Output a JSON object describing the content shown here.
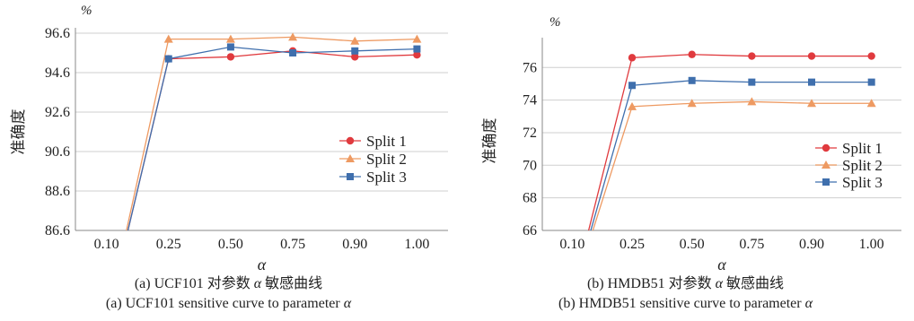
{
  "colors": {
    "split1": "#e03a3e",
    "split2": "#ee9a62",
    "split3": "#3f6fad",
    "gridline": "#cfcfcf",
    "axis": "#888888"
  },
  "chart_data": [
    {
      "type": "line",
      "unit_label": "%",
      "xlabel": "α",
      "ylabel": "准确度",
      "categories": [
        "0.10",
        "0.25",
        "0.50",
        "0.75",
        "0.90",
        "1.00"
      ],
      "ylim": [
        86.6,
        96.6
      ],
      "yticks": [
        "86.6",
        "88.6",
        "90.6",
        "92.6",
        "94.6",
        "96.6"
      ],
      "grid": "horizontal",
      "legend_position": "center-right",
      "series": [
        {
          "name": "Split 1",
          "marker": "circle",
          "color_key": "split1",
          "values": [
            82.0,
            95.3,
            95.4,
            95.7,
            95.4,
            95.5
          ]
        },
        {
          "name": "Split 2",
          "marker": "triangle",
          "color_key": "split2",
          "values": [
            82.0,
            96.3,
            96.3,
            96.4,
            96.2,
            96.3
          ]
        },
        {
          "name": "Split 3",
          "marker": "square",
          "color_key": "split3",
          "values": [
            82.0,
            95.3,
            95.9,
            95.6,
            95.7,
            95.8
          ]
        }
      ],
      "caption_zh_prefix": "(a) UCF101 对参数",
      "caption_zh_symbol": "α",
      "caption_zh_suffix": "敏感曲线",
      "caption_en_prefix": "(a) UCF101 sensitive curve to parameter",
      "caption_en_symbol": "α"
    },
    {
      "type": "line",
      "unit_label": "%",
      "xlabel": "α",
      "ylabel": "准确度",
      "categories": [
        "0.10",
        "0.25",
        "0.50",
        "0.75",
        "0.90",
        "1.00"
      ],
      "ylim": [
        66,
        77.5
      ],
      "yticks": [
        "66",
        "68",
        "70",
        "72",
        "74",
        "76"
      ],
      "grid": "horizontal",
      "legend_position": "center-right",
      "series": [
        {
          "name": "Split 1",
          "marker": "circle",
          "color_key": "split1",
          "values": [
            62.0,
            76.6,
            76.8,
            76.7,
            76.7,
            76.7
          ]
        },
        {
          "name": "Split 2",
          "marker": "triangle",
          "color_key": "split2",
          "values": [
            62.0,
            73.6,
            73.8,
            73.9,
            73.8,
            73.8
          ]
        },
        {
          "name": "Split 3",
          "marker": "square",
          "color_key": "split3",
          "values": [
            62.0,
            74.9,
            75.2,
            75.1,
            75.1,
            75.1
          ]
        }
      ],
      "caption_zh_prefix": "(b) HMDB51 对参数",
      "caption_zh_symbol": "α",
      "caption_zh_suffix": "敏感曲线",
      "caption_en_prefix": "(b) HMDB51 sensitive curve to parameter",
      "caption_en_symbol": "α"
    }
  ]
}
